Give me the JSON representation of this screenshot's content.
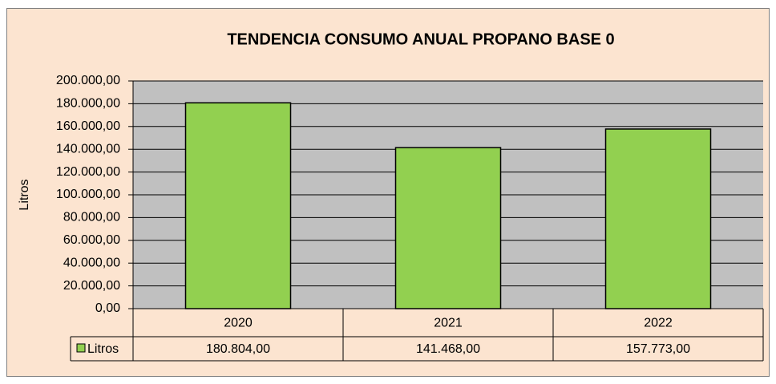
{
  "chart_data": {
    "type": "bar",
    "title": "TENDENCIA CONSUMO ANUAL PROPANO BASE 0",
    "y_label": "Litros",
    "categories": [
      "2020",
      "2021",
      "2022"
    ],
    "series": [
      {
        "name": "Litros",
        "color": "#92d050",
        "values": [
          180804,
          141468,
          157773
        ],
        "value_labels": [
          "180.804,00",
          "141.468,00",
          "157.773,00"
        ]
      }
    ],
    "ylim": [
      0,
      200000
    ],
    "yticks": [
      {
        "value": 0,
        "label": "0,00"
      },
      {
        "value": 20000,
        "label": "20.000,00"
      },
      {
        "value": 40000,
        "label": "40.000,00"
      },
      {
        "value": 60000,
        "label": "60.000,00"
      },
      {
        "value": 80000,
        "label": "80.000,00"
      },
      {
        "value": 100000,
        "label": "100.000,00"
      },
      {
        "value": 120000,
        "label": "120.000,00"
      },
      {
        "value": 140000,
        "label": "140.000,00"
      },
      {
        "value": 160000,
        "label": "160.000,00"
      },
      {
        "value": 180000,
        "label": "180.000,00"
      },
      {
        "value": 200000,
        "label": "200.000,00"
      }
    ],
    "grid": true
  }
}
